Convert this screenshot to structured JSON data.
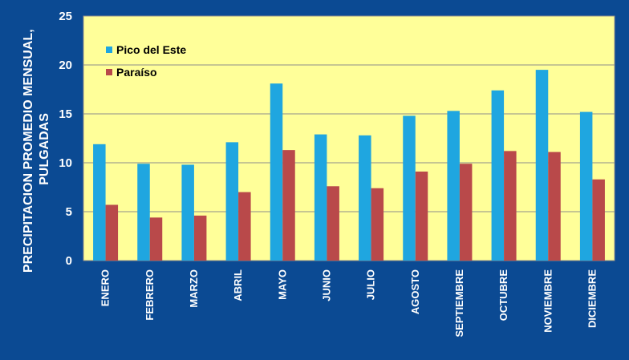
{
  "chart_data": {
    "type": "bar",
    "categories": [
      "ENERO",
      "FEBRERO",
      "MARZO",
      "ABRIL",
      "MAYO",
      "JUNIO",
      "JULIO",
      "AGOSTO",
      "SEPTIEMBRE",
      "OCTUBRE",
      "NOVIEMBRE",
      "DICIEMBRE"
    ],
    "series": [
      {
        "name": "Pico del Este",
        "color": "#1fa6e0",
        "values": [
          11.9,
          9.9,
          9.8,
          12.1,
          18.1,
          12.9,
          12.8,
          14.8,
          15.3,
          17.4,
          19.5,
          15.2
        ]
      },
      {
        "name": "Paraíso",
        "color": "#b9494a",
        "values": [
          5.7,
          4.4,
          4.6,
          7.0,
          11.3,
          7.6,
          7.4,
          9.1,
          9.9,
          11.2,
          11.1,
          8.3
        ]
      }
    ],
    "ylabel": "PRECIPITACION PROMEDIO MENSUAL, PULGADAS",
    "ylabel_lines": [
      "PRECIPITACION PROMEDIO MENSUAL,",
      "PULGADAS"
    ],
    "yticks": [
      0,
      5,
      10,
      15,
      20,
      25
    ],
    "ylim": [
      0,
      25
    ],
    "grid": true,
    "legend_position": "top-left",
    "colors": {
      "background": "#0b4a93",
      "plot_area": "#ffff99",
      "gridline": "#8c8c8c"
    }
  }
}
